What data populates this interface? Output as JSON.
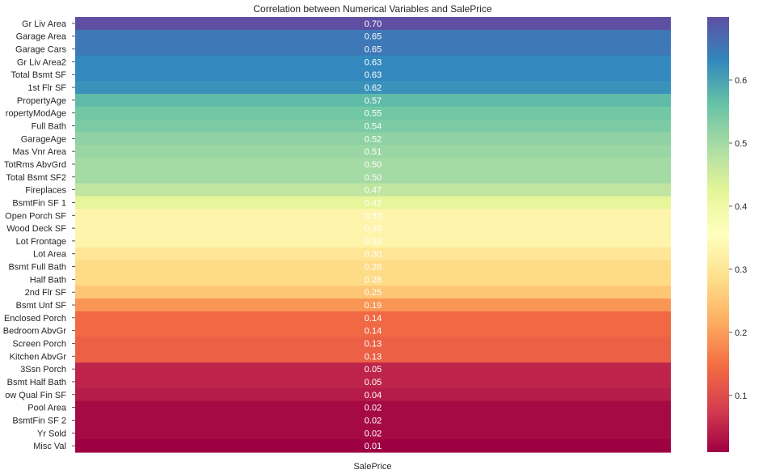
{
  "chart_data": {
    "type": "heatmap",
    "title": "Correlation between Numerical Variables and SalePrice",
    "xlabel": "",
    "ylabel": "",
    "columns": [
      "SalePrice"
    ],
    "rows": [
      {
        "label": "Gr Liv Area",
        "value": 0.7,
        "text": "0.70"
      },
      {
        "label": "Garage Area",
        "value": 0.65,
        "text": "0.65"
      },
      {
        "label": "Garage Cars",
        "value": 0.65,
        "text": "0.65"
      },
      {
        "label": "Gr Liv Area2",
        "value": 0.63,
        "text": "0.63"
      },
      {
        "label": "Total Bsmt SF",
        "value": 0.63,
        "text": "0.63"
      },
      {
        "label": "1st Flr SF",
        "value": 0.62,
        "text": "0.62"
      },
      {
        "label": "PropertyAge",
        "value": 0.57,
        "text": "0.57"
      },
      {
        "label": "ropertyModAge",
        "value": 0.55,
        "text": "0.55"
      },
      {
        "label": "Full Bath",
        "value": 0.54,
        "text": "0.54"
      },
      {
        "label": "GarageAge",
        "value": 0.52,
        "text": "0.52"
      },
      {
        "label": "Mas Vnr Area",
        "value": 0.51,
        "text": "0.51"
      },
      {
        "label": "TotRms AbvGrd",
        "value": 0.5,
        "text": "0.50"
      },
      {
        "label": "Total Bsmt SF2",
        "value": 0.5,
        "text": "0.50"
      },
      {
        "label": "Fireplaces",
        "value": 0.47,
        "text": "0.47"
      },
      {
        "label": "BsmtFin SF 1",
        "value": 0.42,
        "text": "0.42"
      },
      {
        "label": "Open Porch SF",
        "value": 0.33,
        "text": "0.33"
      },
      {
        "label": "Wood Deck SF",
        "value": 0.33,
        "text": "0.33"
      },
      {
        "label": "Lot Frontage",
        "value": 0.33,
        "text": "0.33"
      },
      {
        "label": "Lot Area",
        "value": 0.3,
        "text": "0.30"
      },
      {
        "label": "Bsmt Full Bath",
        "value": 0.28,
        "text": "0.28"
      },
      {
        "label": "Half Bath",
        "value": 0.28,
        "text": "0.28"
      },
      {
        "label": "2nd Flr SF",
        "value": 0.25,
        "text": "0.25"
      },
      {
        "label": "Bsmt Unf SF",
        "value": 0.19,
        "text": "0.19"
      },
      {
        "label": "Enclosed Porch",
        "value": 0.14,
        "text": "0.14"
      },
      {
        "label": "Bedroom AbvGr",
        "value": 0.14,
        "text": "0.14"
      },
      {
        "label": "Screen Porch",
        "value": 0.13,
        "text": "0.13"
      },
      {
        "label": "Kitchen AbvGr",
        "value": 0.13,
        "text": "0.13"
      },
      {
        "label": "3Ssn Porch",
        "value": 0.05,
        "text": "0.05"
      },
      {
        "label": "Bsmt Half Bath",
        "value": 0.05,
        "text": "0.05"
      },
      {
        "label": "ow Qual Fin SF",
        "value": 0.04,
        "text": "0.04"
      },
      {
        "label": "Pool Area",
        "value": 0.02,
        "text": "0.02"
      },
      {
        "label": "BsmtFin SF 2",
        "value": 0.02,
        "text": "0.02"
      },
      {
        "label": "Yr Sold",
        "value": 0.02,
        "text": "0.02"
      },
      {
        "label": "Misc Val",
        "value": 0.01,
        "text": "0.01"
      }
    ],
    "colorbar": {
      "colormap": "Spectral",
      "range": [
        0.01,
        0.7
      ],
      "ticks": [
        0.1,
        0.2,
        0.3,
        0.4,
        0.5,
        0.6
      ],
      "tick_labels": [
        "0.1",
        "0.2",
        "0.3",
        "0.4",
        "0.5",
        "0.6"
      ]
    },
    "colors": {
      "annotation_text": "#ffffff",
      "label_text": "#262626",
      "tick_color": "#262626"
    }
  }
}
